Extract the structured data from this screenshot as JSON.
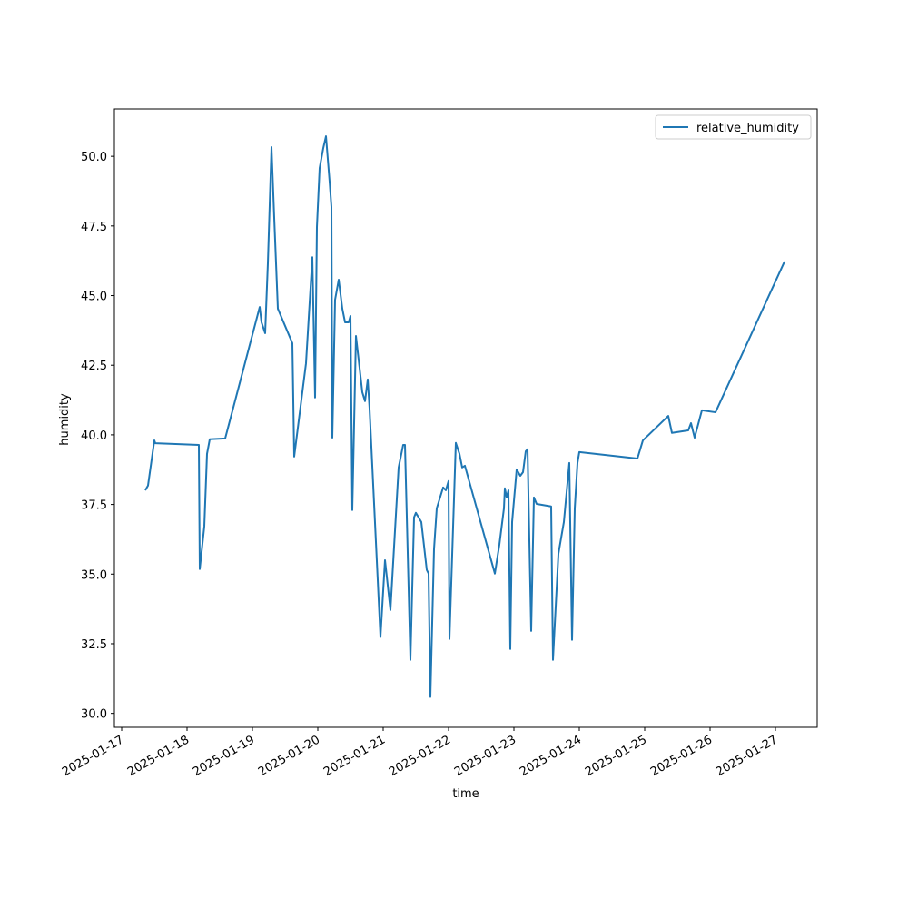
{
  "chart_data": {
    "type": "line",
    "xlabel": "time",
    "ylabel": "humidity",
    "x": [
      "2025-01-17 08:40",
      "2025-01-17 09:40",
      "2025-01-17 12:00",
      "2025-01-17 12:20",
      "2025-01-18 04:20",
      "2025-01-18 04:40",
      "2025-01-18 06:20",
      "2025-01-18 07:20",
      "2025-01-18 08:20",
      "2025-01-18 14:00",
      "2025-01-19 02:40",
      "2025-01-19 03:20",
      "2025-01-19 04:40",
      "2025-01-19 05:40",
      "2025-01-19 07:00",
      "2025-01-19 08:00",
      "2025-01-19 09:20",
      "2025-01-19 14:40",
      "2025-01-19 15:20",
      "2025-01-19 19:40",
      "2025-01-19 22:00",
      "2025-01-19 23:00",
      "2025-01-19 23:40",
      "2025-01-20 00:40",
      "2025-01-20 02:00",
      "2025-01-20 03:00",
      "2025-01-20 04:20",
      "2025-01-20 05:00",
      "2025-01-20 05:20",
      "2025-01-20 06:20",
      "2025-01-20 07:40",
      "2025-01-20 09:00",
      "2025-01-20 10:00",
      "2025-01-20 11:20",
      "2025-01-20 12:00",
      "2025-01-20 12:40",
      "2025-01-20 14:00",
      "2025-01-20 15:20",
      "2025-01-20 16:20",
      "2025-01-20 17:20",
      "2025-01-20 18:20",
      "2025-01-20 19:00",
      "2025-01-20 23:00",
      "2025-01-21 00:40",
      "2025-01-21 02:40",
      "2025-01-21 05:40",
      "2025-01-21 07:20",
      "2025-01-21 08:00",
      "2025-01-21 10:00",
      "2025-01-21 11:20",
      "2025-01-21 12:00",
      "2025-01-21 14:00",
      "2025-01-21 16:00",
      "2025-01-21 16:40",
      "2025-01-21 17:20",
      "2025-01-21 18:40",
      "2025-01-21 19:40",
      "2025-01-21 22:00",
      "2025-01-21 23:00",
      "2025-01-22 00:00",
      "2025-01-22 00:20",
      "2025-01-22 02:40",
      "2025-01-22 04:00",
      "2025-01-22 05:00",
      "2025-01-22 06:00",
      "2025-01-22 17:00",
      "2025-01-22 18:40",
      "2025-01-22 20:20",
      "2025-01-22 20:40",
      "2025-01-22 21:20",
      "2025-01-22 22:00",
      "2025-01-22 22:40",
      "2025-01-22 23:20",
      "2025-01-23 01:00",
      "2025-01-23 02:20",
      "2025-01-23 03:20",
      "2025-01-23 04:20",
      "2025-01-23 05:00",
      "2025-01-23 06:20",
      "2025-01-23 07:20",
      "2025-01-23 08:20",
      "2025-01-23 13:40",
      "2025-01-23 14:20",
      "2025-01-23 16:20",
      "2025-01-23 18:20",
      "2025-01-23 20:20",
      "2025-01-23 21:20",
      "2025-01-23 22:20",
      "2025-01-23 23:20",
      "2025-01-24 00:00",
      "2025-01-24 21:20",
      "2025-01-24 23:20",
      "2025-01-25 08:40",
      "2025-01-25 10:00",
      "2025-01-25 16:00",
      "2025-01-25 17:00",
      "2025-01-25 18:20",
      "2025-01-25 21:00",
      "2025-01-26 02:00",
      "2025-01-27 03:20"
    ],
    "series": [
      {
        "name": "relative_humidity",
        "color": "#1f77b4",
        "values": [
          38.01,
          38.18,
          39.8,
          39.7,
          39.64,
          35.18,
          36.71,
          39.32,
          39.84,
          39.87,
          44.59,
          44.04,
          43.65,
          46.16,
          50.33,
          47.79,
          44.53,
          43.29,
          39.22,
          42.57,
          46.38,
          41.34,
          47.46,
          49.58,
          50.29,
          50.72,
          49.09,
          48.18,
          39.9,
          44.85,
          45.57,
          44.53,
          44.04,
          44.04,
          44.27,
          37.3,
          43.55,
          42.41,
          41.53,
          41.21,
          41.99,
          40.94,
          32.74,
          35.5,
          33.71,
          38.83,
          39.64,
          39.64,
          31.92,
          37.04,
          37.2,
          36.87,
          35.15,
          35.02,
          30.59,
          35.9,
          37.36,
          38.11,
          38.01,
          38.34,
          32.67,
          39.71,
          39.32,
          38.83,
          38.89,
          35.02,
          36.06,
          37.36,
          38.08,
          37.75,
          38.01,
          32.31,
          36.87,
          38.76,
          38.53,
          38.66,
          39.41,
          39.48,
          32.96,
          37.75,
          37.52,
          37.43,
          31.92,
          35.73,
          36.87,
          38.99,
          32.64,
          37.36,
          38.99,
          39.38,
          39.15,
          39.8,
          40.68,
          40.07,
          40.16,
          40.42,
          39.9,
          40.88,
          40.81,
          46.22
        ]
      }
    ],
    "xlim": [
      "2025-01-16 21:20",
      "2025-01-27 15:20"
    ],
    "xticks": [
      "2025-01-17",
      "2025-01-18",
      "2025-01-19",
      "2025-01-20",
      "2025-01-21",
      "2025-01-22",
      "2025-01-23",
      "2025-01-24",
      "2025-01-25",
      "2025-01-26",
      "2025-01-27"
    ],
    "ylim": [
      29.5,
      51.7
    ],
    "yticks": [
      {
        "value": 30,
        "label": "30.0"
      },
      32.5,
      {
        "value": 35,
        "label": "35.0"
      },
      37.5,
      {
        "value": 40,
        "label": "40.0"
      },
      42.5,
      {
        "value": 45,
        "label": "45.0"
      },
      47.5,
      {
        "value": 50,
        "label": "50.0"
      }
    ],
    "legend": "upper right",
    "grid": false
  }
}
